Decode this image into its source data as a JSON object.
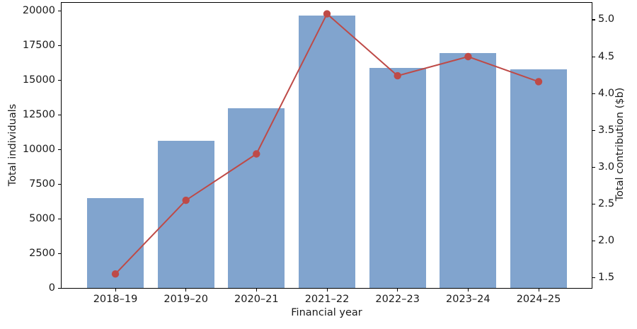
{
  "chart_data": {
    "type": "combo",
    "title": "",
    "xlabel": "Financial year",
    "categories": [
      "2018–19",
      "2019–20",
      "2020–21",
      "2021–22",
      "2022–23",
      "2023–24",
      "2024–25"
    ],
    "series": [
      {
        "name": "Total individuals",
        "type": "bar",
        "axis": "left",
        "values": [
          6500,
          10650,
          13000,
          19700,
          15900,
          16950,
          15800
        ],
        "color": "#81A4CE"
      },
      {
        "name": "Total contribution ($b)",
        "type": "line",
        "axis": "right",
        "values": [
          1.55,
          2.55,
          3.18,
          5.08,
          4.24,
          4.5,
          4.16
        ],
        "color": "#BE4A47",
        "marker": "circle"
      }
    ],
    "left_axis": {
      "label": "Total individuals",
      "ticks": [
        0,
        2500,
        5000,
        7500,
        10000,
        12500,
        15000,
        17500,
        20000
      ],
      "range": [
        0,
        20600
      ]
    },
    "right_axis": {
      "label": "Total contribution ($b)",
      "ticks": [
        1.5,
        2.0,
        2.5,
        3.0,
        3.5,
        4.0,
        4.5,
        5.0
      ],
      "range": [
        1.36,
        5.23
      ]
    },
    "grid": false,
    "legend": "none",
    "spine_color": "#000000",
    "background": "#ffffff"
  }
}
